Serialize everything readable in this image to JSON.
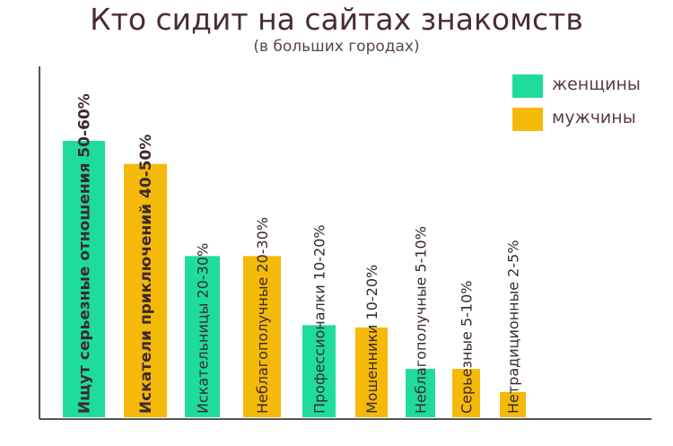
{
  "title": "Кто сидит на сайтах знакомств",
  "subtitle": "(в больших городах)",
  "legend": [
    {
      "label": "женщины",
      "color": "#1fdc9b"
    },
    {
      "label": "мужчины",
      "color": "#f5b90a"
    }
  ],
  "colors": {
    "women": "#1fdc9b",
    "men": "#f5b90a",
    "axis": "#555555",
    "label": "#3a2a30"
  },
  "chart_data": {
    "type": "bar",
    "title": "Кто сидит на сайтах знакомств",
    "subtitle": "(в больших городах)",
    "xlabel": "",
    "ylabel": "",
    "grid": false,
    "legend_position": "top-right",
    "series": [
      {
        "name": "женщины",
        "color": "#1fdc9b"
      },
      {
        "name": "мужчины",
        "color": "#f5b90a"
      }
    ],
    "bars": [
      {
        "label": "Ищут серьезные отношения",
        "range": "50-60%",
        "value": 60,
        "series": "женщины",
        "bold": true
      },
      {
        "label": "Искатели приключений",
        "range": "40-50%",
        "value": 55,
        "series": "мужчины",
        "bold": true
      },
      {
        "label": "Искательницы",
        "range": "20-30%",
        "value": 35,
        "series": "женщины",
        "bold": false
      },
      {
        "label": "Неблагополучные",
        "range": "20-30%",
        "value": 35,
        "series": "мужчины",
        "bold": false
      },
      {
        "label": "Профессионалки",
        "range": "10-20%",
        "value": 20,
        "series": "женщины",
        "bold": false
      },
      {
        "label": "Мошенники",
        "range": "10-20%",
        "value": 19.5,
        "series": "мужчины",
        "bold": false
      },
      {
        "label": "Неблагополучные",
        "range": "5-10%",
        "value": 10.5,
        "series": "женщины",
        "bold": false
      },
      {
        "label": "Серьезные",
        "range": "5-10%",
        "value": 10.5,
        "series": "мужчины",
        "bold": false
      },
      {
        "label": "Нетрадиционные",
        "range": "2-5%",
        "value": 5.5,
        "series": "мужчины",
        "bold": false
      }
    ],
    "ylim": [
      0,
      60
    ]
  }
}
